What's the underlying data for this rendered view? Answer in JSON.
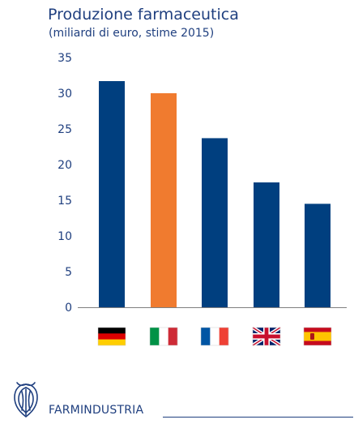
{
  "chart_data": {
    "type": "bar",
    "title": "Produzione farmaceutica",
    "subtitle": "(miliardi di euro, stime 2015)",
    "categories": [
      "germany-flag",
      "italy-flag",
      "france-flag",
      "uk-flag",
      "spain-flag"
    ],
    "values": [
      31.7,
      30.0,
      23.7,
      17.5,
      14.5
    ],
    "bar_colors": [
      "#003f7f",
      "#f07b2f",
      "#003f7f",
      "#003f7f",
      "#003f7f"
    ],
    "ylim": [
      0,
      35
    ],
    "yticks": [
      "0",
      "5",
      "10",
      "15",
      "20",
      "25",
      "30",
      "35"
    ],
    "grid": false
  },
  "footer": {
    "brand": "FARMINDUSTRIA",
    "logo_icon": "farmindustria-logo-icon"
  }
}
